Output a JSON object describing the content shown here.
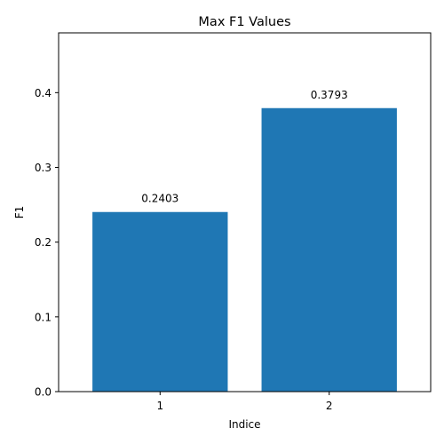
{
  "chart_data": {
    "type": "bar",
    "title": "Max F1 Values",
    "xlabel": "Indice",
    "ylabel": "F1",
    "categories": [
      "1",
      "2"
    ],
    "values": [
      0.2403,
      0.3793
    ],
    "data_labels": [
      "0.2403",
      "0.3793"
    ],
    "ylim": [
      0,
      0.48
    ],
    "yticks": [
      0.0,
      0.1,
      0.2,
      0.3,
      0.4
    ],
    "ytick_labels": [
      "0.0",
      "0.1",
      "0.2",
      "0.3",
      "0.4"
    ],
    "grid": false,
    "bar_color": "#1f77b4"
  }
}
